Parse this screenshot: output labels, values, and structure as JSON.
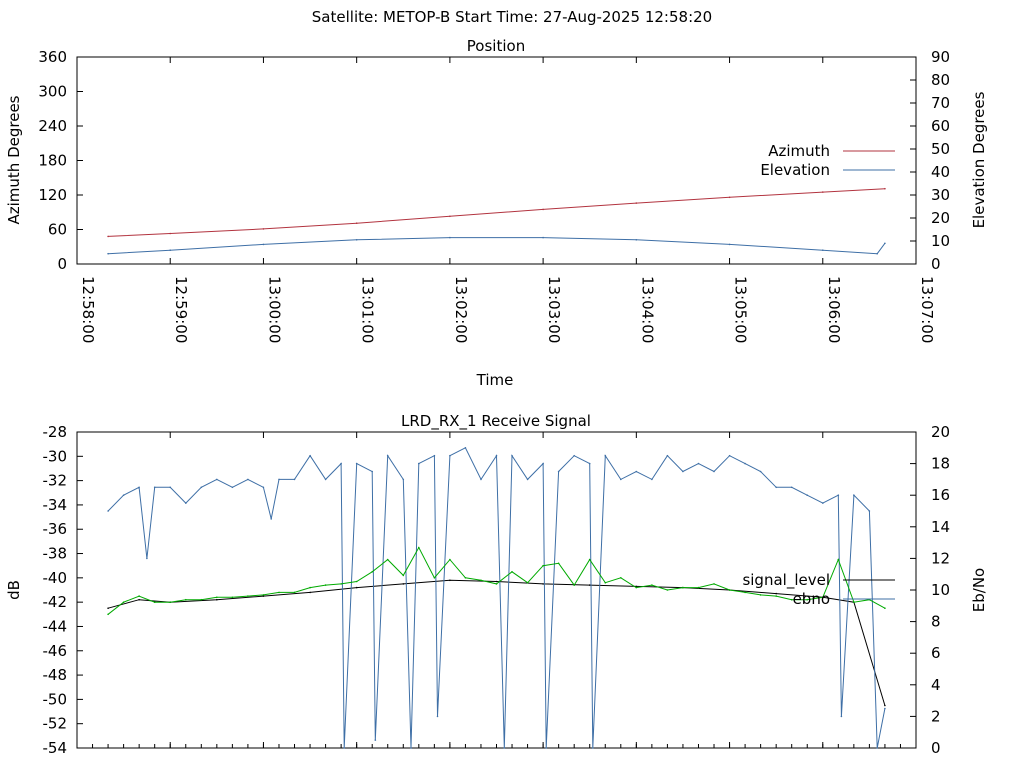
{
  "suptitle": "Satellite: METOP-B    Start Time: 27-Aug-2025 12:58:20",
  "chart_data": [
    {
      "type": "line",
      "title": "Position",
      "xlabel": "Time",
      "ylabel": "Azimuth Degrees",
      "y2label": "Elevation Degrees",
      "xlim": [
        "12:58:00",
        "13:07:00"
      ],
      "ylim": [
        0,
        360
      ],
      "y2lim": [
        0,
        90
      ],
      "x_ticks": [
        "12:58:00",
        "12:59:00",
        "13:00:00",
        "13:01:00",
        "13:02:00",
        "13:03:00",
        "13:04:00",
        "13:05:00",
        "13:06:00",
        "13:07:00"
      ],
      "y_ticks": [
        "0",
        "60",
        "120",
        "180",
        "240",
        "300",
        "360"
      ],
      "y2_ticks": [
        "0",
        "10",
        "20",
        "30",
        "40",
        "50",
        "60",
        "70",
        "80",
        "90"
      ],
      "legend_position": "right",
      "series": [
        {
          "name": "Azimuth",
          "axis": "left",
          "color": "#b2333f",
          "x": [
            "12:58:20",
            "12:59:00",
            "13:00:00",
            "13:01:00",
            "13:02:00",
            "13:03:00",
            "13:04:00",
            "13:05:00",
            "13:06:00",
            "13:06:40"
          ],
          "values": [
            48,
            53,
            61,
            71,
            83,
            95,
            106,
            116,
            125,
            131
          ]
        },
        {
          "name": "Elevation",
          "axis": "right",
          "color": "#3e6fa6",
          "x": [
            "12:58:20",
            "12:59:00",
            "13:00:00",
            "13:01:00",
            "13:02:00",
            "13:03:00",
            "13:04:00",
            "13:05:00",
            "13:06:00",
            "13:06:35",
            "13:06:40"
          ],
          "values": [
            4.5,
            6.0,
            8.5,
            10.5,
            11.5,
            11.5,
            10.5,
            8.5,
            6.0,
            4.5,
            9.0
          ]
        }
      ]
    },
    {
      "type": "line",
      "title": "LRD_RX_1 Receive Signal",
      "xlabel": "",
      "ylabel": "dB",
      "y2label": "Eb/No",
      "xlim": [
        "12:58:00",
        "13:07:00"
      ],
      "ylim": [
        -54,
        -28
      ],
      "y2lim": [
        0,
        20
      ],
      "y_ticks": [
        "-28",
        "-30",
        "-32",
        "-34",
        "-36",
        "-38",
        "-40",
        "-42",
        "-44",
        "-46",
        "-48",
        "-50",
        "-52",
        "-54"
      ],
      "y2_ticks": [
        "0",
        "2",
        "4",
        "6",
        "8",
        "10",
        "12",
        "14",
        "16",
        "18",
        "20"
      ],
      "legend_position": "right",
      "series": [
        {
          "name": "signal_level",
          "axis": "left",
          "color": "#000000",
          "x": [
            "12:58:20",
            "12:58:40",
            "12:59:00",
            "12:59:30",
            "13:00:00",
            "13:00:30",
            "13:01:00",
            "13:01:30",
            "13:02:00",
            "13:02:30",
            "13:03:00",
            "13:03:30",
            "13:04:00",
            "13:04:30",
            "13:05:00",
            "13:05:30",
            "13:06:00",
            "13:06:20",
            "13:06:40"
          ],
          "values": [
            -42.5,
            -41.8,
            -42.0,
            -41.8,
            -41.5,
            -41.2,
            -40.8,
            -40.5,
            -40.2,
            -40.3,
            -40.5,
            -40.6,
            -40.7,
            -40.8,
            -41.0,
            -41.3,
            -41.6,
            -42.0,
            -50.5
          ]
        },
        {
          "name": "ebno",
          "axis": "right",
          "color": "#3e6fa6",
          "x": [
            "12:58:20",
            "12:58:30",
            "12:58:40",
            "12:58:45",
            "12:58:50",
            "12:59:00",
            "12:59:10",
            "12:59:20",
            "12:59:30",
            "12:59:40",
            "12:59:50",
            "13:00:00",
            "13:00:05",
            "13:00:10",
            "13:00:20",
            "13:00:30",
            "13:00:40",
            "13:00:50",
            "13:00:52",
            "13:01:00",
            "13:01:10",
            "13:01:12",
            "13:01:20",
            "13:01:30",
            "13:01:35",
            "13:01:40",
            "13:01:50",
            "13:01:52",
            "13:02:00",
            "13:02:10",
            "13:02:20",
            "13:02:30",
            "13:02:35",
            "13:02:40",
            "13:02:50",
            "13:03:00",
            "13:03:02",
            "13:03:10",
            "13:03:20",
            "13:03:30",
            "13:03:32",
            "13:03:40",
            "13:03:50",
            "13:04:00",
            "13:04:10",
            "13:04:20",
            "13:04:30",
            "13:04:40",
            "13:04:50",
            "13:05:00",
            "13:05:10",
            "13:05:20",
            "13:05:30",
            "13:05:40",
            "13:05:50",
            "13:06:00",
            "13:06:10",
            "13:06:12",
            "13:06:20",
            "13:06:30",
            "13:06:35",
            "13:06:40"
          ],
          "values": [
            15,
            16,
            16.5,
            12.0,
            16.5,
            16.5,
            15.5,
            16.5,
            17.0,
            16.5,
            17.0,
            16.5,
            14.5,
            17.0,
            17.0,
            18.5,
            17.0,
            18.0,
            0,
            18.0,
            17.5,
            0.5,
            18.5,
            17.0,
            0,
            18.0,
            18.5,
            2.0,
            18.5,
            19.0,
            17.0,
            18.5,
            0,
            18.5,
            17.0,
            18.0,
            0,
            17.5,
            18.5,
            18.0,
            0,
            18.5,
            17.0,
            17.5,
            17.0,
            18.5,
            17.5,
            18.0,
            17.5,
            18.5,
            18.0,
            17.5,
            16.5,
            16.5,
            16.0,
            15.5,
            16.0,
            2.0,
            16.0,
            15.0,
            0,
            2.5
          ]
        },
        {
          "name": "",
          "axis": "left",
          "color": "#00aa00",
          "x": [
            "12:58:20",
            "12:58:30",
            "12:58:40",
            "12:58:50",
            "12:59:00",
            "12:59:10",
            "12:59:20",
            "12:59:30",
            "12:59:40",
            "12:59:50",
            "13:00:00",
            "13:00:10",
            "13:00:20",
            "13:00:30",
            "13:00:40",
            "13:00:50",
            "13:01:00",
            "13:01:10",
            "13:01:20",
            "13:01:30",
            "13:01:40",
            "13:01:50",
            "13:02:00",
            "13:02:10",
            "13:02:20",
            "13:02:30",
            "13:02:40",
            "13:02:50",
            "13:03:00",
            "13:03:10",
            "13:03:20",
            "13:03:30",
            "13:03:40",
            "13:03:50",
            "13:04:00",
            "13:04:10",
            "13:04:20",
            "13:04:30",
            "13:04:40",
            "13:04:50",
            "13:05:00",
            "13:05:10",
            "13:05:20",
            "13:05:30",
            "13:05:40",
            "13:05:50",
            "13:06:00",
            "13:06:10",
            "13:06:20",
            "13:06:30",
            "13:06:40"
          ],
          "values": [
            -43.0,
            -42.0,
            -41.5,
            -42.0,
            -42.0,
            -41.8,
            -41.8,
            -41.6,
            -41.6,
            -41.5,
            -41.4,
            -41.2,
            -41.2,
            -40.8,
            -40.6,
            -40.5,
            -40.3,
            -39.5,
            -38.5,
            -39.8,
            -37.5,
            -40.0,
            -38.5,
            -40.0,
            -40.2,
            -40.5,
            -39.5,
            -40.4,
            -39.0,
            -38.8,
            -40.6,
            -38.5,
            -40.4,
            -40.0,
            -40.8,
            -40.6,
            -41.0,
            -40.8,
            -40.8,
            -40.5,
            -41.0,
            -41.2,
            -41.4,
            -41.5,
            -41.8,
            -41.8,
            -41.6,
            -38.5,
            -42.0,
            -41.8,
            -42.5
          ]
        }
      ]
    }
  ]
}
